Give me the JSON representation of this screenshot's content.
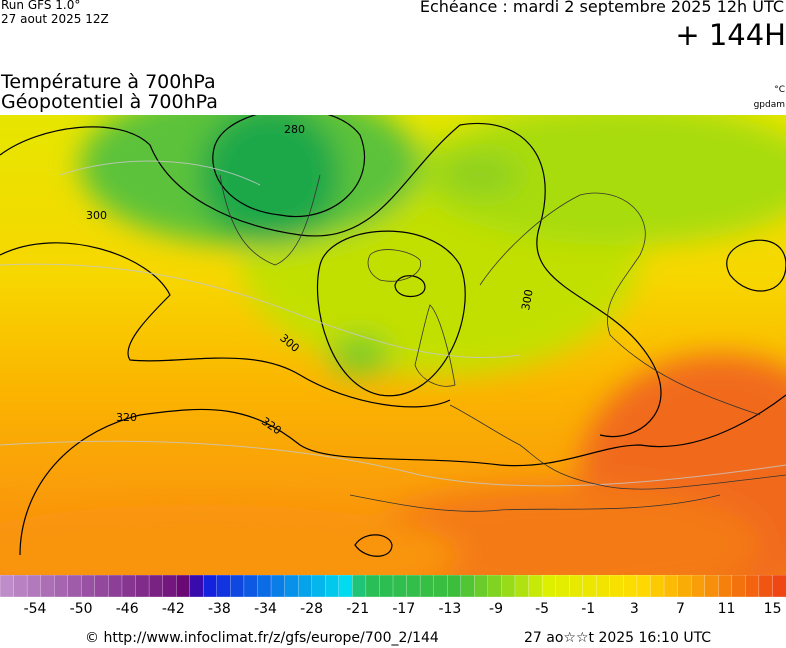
{
  "header": {
    "run": "Run GFS 1.0°",
    "run_date": "27 aout 2025 12Z",
    "echeance": "Echéance : mardi 2 septembre 2025 12h UTC",
    "lead": "+ 144H",
    "title_line1": "Température à 700hPa",
    "title_line2": "Géopotentiel à 700hPa",
    "unit_temp": "°C",
    "unit_geo": "gpdam"
  },
  "map": {
    "contour_labels": [
      "280",
      "300",
      "300",
      "300",
      "320",
      "320"
    ]
  },
  "colorbar": {
    "labels": [
      "-54",
      "-50",
      "-46",
      "-42",
      "-38",
      "-34",
      "-28",
      "-21",
      "-17",
      "-13",
      "-9",
      "-5",
      "-1",
      "3",
      "7",
      "11",
      "15"
    ]
  },
  "footer": {
    "url": "© http://www.infoclimat.fr/z/gfs/europe/700_2/144",
    "timestamp": "27 ao☆☆t 2025 16:10 UTC"
  }
}
